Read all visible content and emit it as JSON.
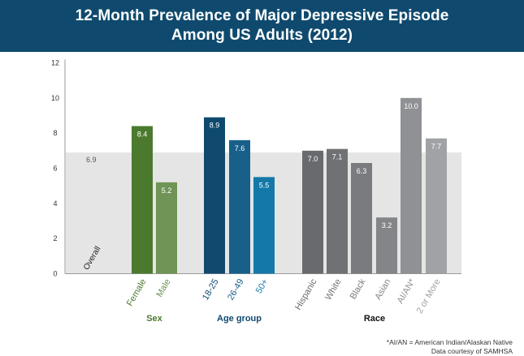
{
  "header": {
    "title_line1": "12-Month Prevalence of Major Depressive Episode",
    "title_line2": "Among US Adults  (2012)"
  },
  "footnotes": {
    "abbreviation": "*AI/AN = American Indian/Alaskan Native",
    "source": "Data courtesy of SAMHSA"
  },
  "chart_data": {
    "type": "bar",
    "title": "12-Month Prevalence of Major Depressive Episode Among US Adults  (2012)",
    "ylim": [
      0,
      12
    ],
    "yticks": [
      "0",
      "2",
      "4",
      "6",
      "8",
      "10",
      "12"
    ],
    "overall": {
      "label": "Overall",
      "value": 6.9,
      "value_label": "6.9"
    },
    "groups": [
      {
        "name": "Sex",
        "color": "#4b7a2f",
        "bars": [
          {
            "category": "Female",
            "value": 8.4,
            "label": "8.4",
            "color": "#4b7a2f"
          },
          {
            "category": "Male",
            "value": 5.2,
            "label": "5.2",
            "color": "#6f9456"
          }
        ]
      },
      {
        "name": "Age group",
        "color": "#0f4a6e",
        "bars": [
          {
            "category": "18-25",
            "value": 8.9,
            "label": "8.9",
            "color": "#0f4a6e"
          },
          {
            "category": "26-49",
            "value": 7.6,
            "label": "7.6",
            "color": "#185f8a"
          },
          {
            "category": "50+",
            "value": 5.5,
            "label": "5.5",
            "color": "#1479a9"
          }
        ]
      },
      {
        "name": "Race",
        "color": "#111111",
        "bars": [
          {
            "category": "Hispanic",
            "value": 7.0,
            "label": "7.0",
            "color": "#686a6d"
          },
          {
            "category": "White",
            "value": 7.1,
            "label": "7.1",
            "color": "#6f7174"
          },
          {
            "category": "Black",
            "value": 6.3,
            "label": "6.3",
            "color": "#797b7e"
          },
          {
            "category": "Asian",
            "value": 3.2,
            "label": "3.2",
            "color": "#838588"
          },
          {
            "category": "AI/AN*",
            "value": 10.0,
            "label": "10.0",
            "color": "#8f9194"
          },
          {
            "category": "2 or More",
            "value": 7.7,
            "label": "7.7",
            "color": "#a0a2a5"
          }
        ]
      }
    ]
  }
}
